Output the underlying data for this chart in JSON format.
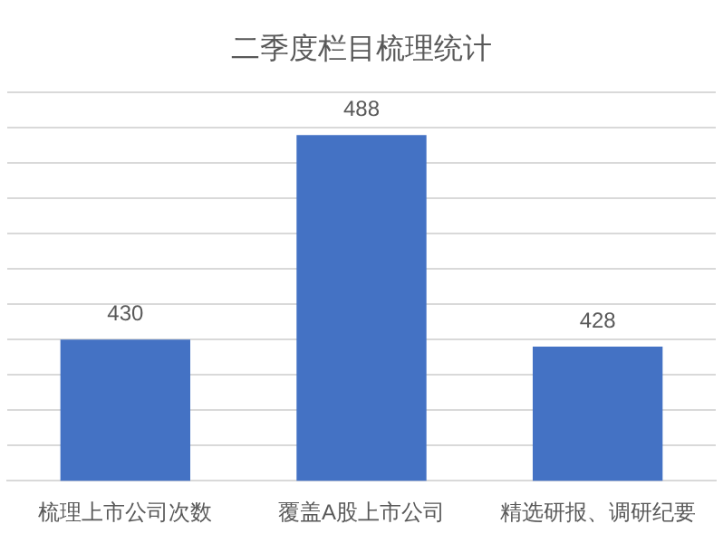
{
  "chart_data": {
    "type": "bar",
    "title": "二季度栏目梳理统计",
    "categories": [
      "梳理上市公司次数",
      "覆盖A股上市公司",
      "精选研报、调研纪要"
    ],
    "values": [
      430,
      488,
      428
    ],
    "color": "#4472c4",
    "ylim": [
      390,
      500
    ],
    "yticks": [
      {
        "value": 390,
        "label": null
      },
      {
        "value": 400,
        "label": null
      },
      {
        "value": 410,
        "label": null
      },
      {
        "value": 420,
        "label": null
      },
      {
        "value": 430,
        "label": null
      },
      {
        "value": 440,
        "label": null
      },
      {
        "value": 450,
        "label": null
      },
      {
        "value": 460,
        "label": null
      },
      {
        "value": 470,
        "label": null
      },
      {
        "value": 480,
        "label": null
      },
      {
        "value": 490,
        "label": null
      },
      {
        "value": 500,
        "label": null
      }
    ],
    "grid": "y",
    "tick_labels": "x",
    "data_labels": true
  }
}
